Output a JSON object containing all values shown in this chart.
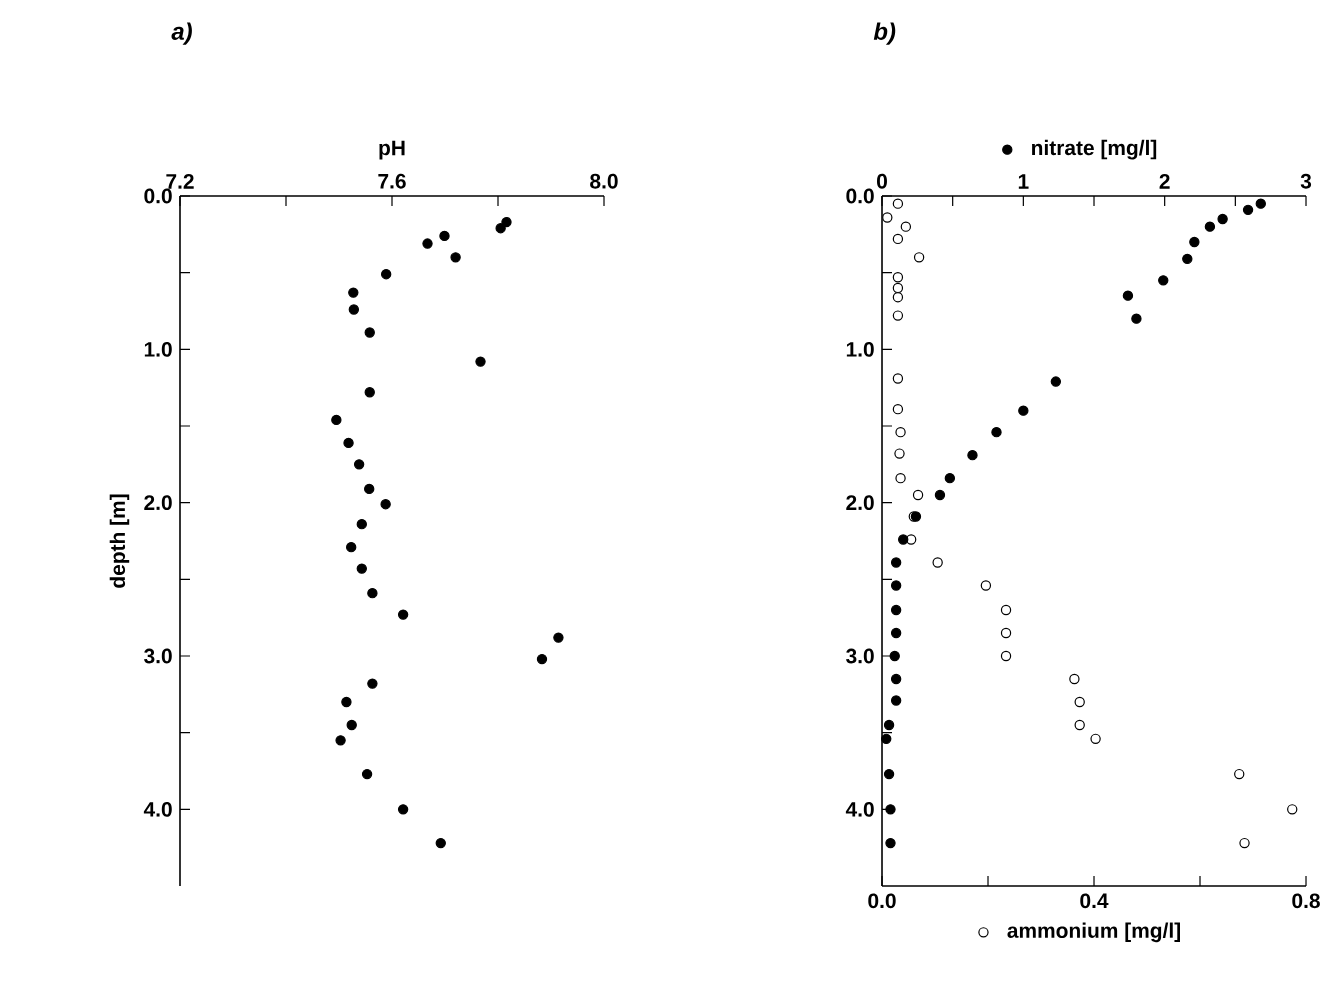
{
  "chart_data": [
    {
      "type": "scatter",
      "title": "a)",
      "xlabel": "pH",
      "ylabel": "depth [m]",
      "marker": "circle",
      "grid": false,
      "xlim": [
        7.2,
        8.0
      ],
      "xticks": [
        {
          "value": 7.2,
          "label": "7.2"
        },
        {
          "value": 7.4,
          "label": null
        },
        {
          "value": 7.6,
          "label": "7.6"
        },
        {
          "value": 7.8,
          "label": null
        },
        {
          "value": 8.0,
          "label": "8.0"
        }
      ],
      "ylim": [
        4.5,
        0
      ],
      "yticks": [
        {
          "value": 0,
          "label": "0.0"
        },
        {
          "value": 0.5,
          "label": null
        },
        {
          "value": 1,
          "label": "1.0"
        },
        {
          "value": 1.5,
          "label": null
        },
        {
          "value": 2,
          "label": "2.0"
        },
        {
          "value": 2.5,
          "label": null
        },
        {
          "value": 3,
          "label": "3.0"
        },
        {
          "value": 3.5,
          "label": null
        },
        {
          "value": 4,
          "label": "4.0"
        }
      ],
      "series": [
        {
          "color": "#000000",
          "x": [
            7.816,
            7.805,
            7.699,
            7.667,
            7.72,
            7.589,
            7.527,
            7.528,
            7.558,
            7.767,
            7.558,
            7.495,
            7.518,
            7.538,
            7.557,
            7.588,
            7.543,
            7.523,
            7.543,
            7.563,
            7.621,
            7.914,
            7.883,
            7.563,
            7.514,
            7.524,
            7.503,
            7.553,
            7.621,
            7.692
          ],
          "values": [
            0.17,
            0.21,
            0.26,
            0.31,
            0.4,
            0.51,
            0.63,
            0.74,
            0.89,
            1.08,
            1.28,
            1.46,
            1.61,
            1.75,
            1.91,
            2.01,
            2.14,
            2.29,
            2.43,
            2.59,
            2.73,
            2.88,
            3.02,
            3.18,
            3.3,
            3.45,
            3.55,
            3.77,
            4.0,
            4.22
          ]
        }
      ]
    },
    {
      "type": "scatter",
      "title": "b)",
      "xlabel": "ammonium [mg/l]",
      "x2label": "nitrate [mg/l]",
      "marker": "circle",
      "grid": false,
      "xlim": [
        0,
        0.8
      ],
      "xticks": [
        {
          "value": 0,
          "label": "0.0"
        },
        {
          "value": 0.2,
          "label": null
        },
        {
          "value": 0.4,
          "label": "0.4"
        },
        {
          "value": 0.6,
          "label": null
        },
        {
          "value": 0.8,
          "label": "0.8"
        }
      ],
      "x2lim": [
        0,
        3
      ],
      "x2ticks": [
        0,
        {
          "value": 0.5,
          "label": null
        },
        1,
        {
          "value": 1.5,
          "label": null
        },
        2,
        {
          "value": 2.5,
          "label": null
        },
        3
      ],
      "ylim": [
        4.5,
        0
      ],
      "yticks": [
        {
          "value": 0,
          "label": "0.0"
        },
        {
          "value": 0.5,
          "label": null
        },
        {
          "value": 1,
          "label": "1.0"
        },
        {
          "value": 1.5,
          "label": null
        },
        {
          "value": 2,
          "label": "2.0"
        },
        {
          "value": 2.5,
          "label": null
        },
        {
          "value": 3,
          "label": "3.0"
        },
        {
          "value": 3.5,
          "label": null
        },
        {
          "value": 4,
          "label": "4.0"
        }
      ],
      "series": [
        {
          "color": "#000000",
          "axis": "x2",
          "x": [
            2.68,
            2.59,
            2.41,
            2.32,
            2.21,
            2.16,
            1.99,
            1.74,
            1.8,
            1.23,
            1.0,
            0.81,
            0.64,
            0.48,
            0.41,
            0.24,
            0.15,
            0.1,
            0.1,
            0.1,
            0.1,
            0.09,
            0.1,
            0.1,
            0.05,
            0.03,
            0.05,
            0.06,
            0.06
          ],
          "values": [
            0.05,
            0.09,
            0.15,
            0.2,
            0.3,
            0.41,
            0.55,
            0.65,
            0.8,
            1.21,
            1.4,
            1.54,
            1.69,
            1.84,
            1.95,
            2.09,
            2.24,
            2.39,
            2.54,
            2.7,
            2.85,
            3.0,
            3.15,
            3.29,
            3.45,
            3.54,
            3.77,
            4.0,
            4.22
          ]
        },
        {
          "color": "#ffffff",
          "x": [
            0.03,
            0.01,
            0.045,
            0.03,
            0.07,
            0.03,
            0.03,
            0.03,
            0.03,
            0.03,
            0.03,
            0.035,
            0.033,
            0.035,
            0.068,
            0.06,
            0.055,
            0.105,
            0.196,
            0.234,
            0.234,
            0.234,
            0.363,
            0.373,
            0.373,
            0.403,
            0.674,
            0.774,
            0.684
          ],
          "values": [
            0.05,
            0.14,
            0.2,
            0.28,
            0.4,
            0.53,
            0.6,
            0.66,
            0.78,
            1.19,
            1.39,
            1.54,
            1.68,
            1.84,
            1.95,
            2.09,
            2.24,
            2.39,
            2.54,
            2.7,
            2.85,
            3.0,
            3.15,
            3.3,
            3.45,
            3.54,
            3.77,
            4.0,
            4.22
          ]
        }
      ]
    }
  ]
}
